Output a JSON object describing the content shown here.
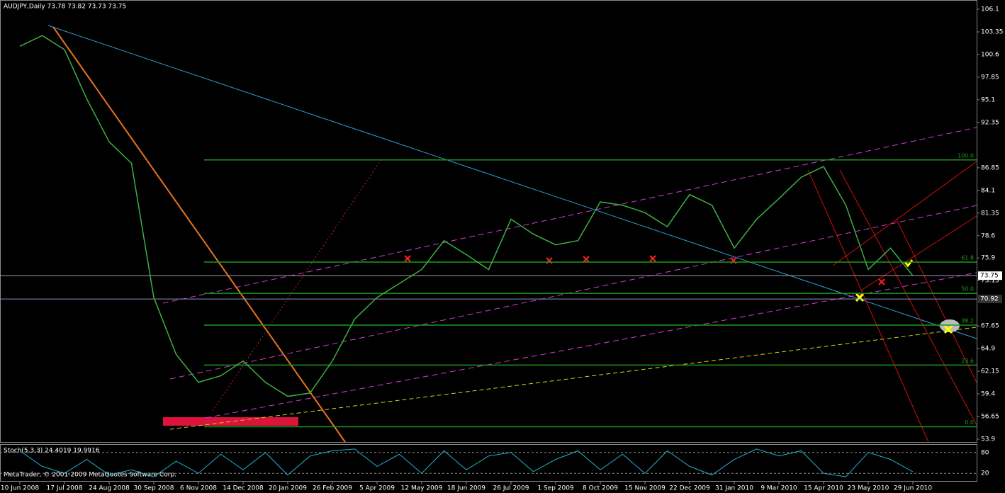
{
  "chart_data": {
    "type": "line",
    "title": "AUDJPY,Daily  73.78 73.82 73.73 73.75",
    "categories": [
      "10 Jun 2008",
      null,
      "17 Jul 2008",
      null,
      "24 Aug 2008",
      null,
      "30 Sep 2008",
      null,
      "6 Nov 2008",
      null,
      "14 Dec 2008",
      null,
      "20 Jan 2009",
      null,
      "26 Feb 2009",
      null,
      "5 Apr 2009",
      null,
      "12 May 2009",
      null,
      "18 Jun 2009",
      null,
      "26 Jul 2009",
      null,
      "1 Sep 2009",
      null,
      "8 Oct 2009",
      null,
      "15 Nov 2009",
      null,
      "22 Dec 2009",
      null,
      "31 Jan 2010",
      null,
      "9 Mar 2010",
      null,
      "15 Apr 2010",
      null,
      "23 May 2010",
      null,
      "29 Jun 2010"
    ],
    "series": [
      {
        "name": "AUDJPY",
        "color": "#3cb043",
        "values": [
          101.6,
          102.9,
          101.2,
          95.2,
          90.0,
          87.4,
          71.1,
          64.2,
          60.8,
          61.6,
          63.4,
          60.8,
          59.1,
          59.5,
          63.4,
          68.5,
          71.1,
          72.8,
          74.5,
          78.0,
          76.3,
          74.5,
          80.6,
          78.8,
          77.5,
          78.0,
          82.7,
          82.3,
          81.4,
          79.7,
          83.6,
          82.3,
          77.1,
          80.6,
          83.1,
          85.7,
          87.0,
          82.3,
          74.5,
          77.1,
          73.75
        ]
      }
    ],
    "ylim": [
      53.9,
      106.1
    ],
    "yticks": [
      106.1,
      103.35,
      100.6,
      97.85,
      95.1,
      92.35,
      86.85,
      84.1,
      81.35,
      78.6,
      75.9,
      73.15,
      67.65,
      64.9,
      62.15,
      59.4,
      56.65,
      53.9
    ],
    "price_labels": [
      73.75,
      70.92
    ],
    "fib_levels": [
      {
        "value": 87.8,
        "label": "100.0"
      },
      {
        "value": 75.4,
        "label": "61.8"
      },
      {
        "value": 71.6,
        "label": "50.0"
      },
      {
        "value": 67.75,
        "label": "38.2"
      },
      {
        "value": 62.9,
        "label": "23.6"
      },
      {
        "value": 55.4,
        "label": "0.0"
      }
    ],
    "oscillator": {
      "title": "Stoch(5,3,3) 24.4019 19.9916",
      "color": "#20b2d0",
      "values": [
        85,
        40,
        20,
        60,
        15,
        30,
        10,
        55,
        20,
        75,
        30,
        80,
        15,
        70,
        85,
        90,
        40,
        75,
        20,
        85,
        30,
        70,
        80,
        25,
        60,
        85,
        30,
        75,
        20,
        85,
        40,
        15,
        60,
        90,
        70,
        85,
        20,
        10,
        80,
        60,
        24.4
      ],
      "ylim": [
        0,
        100
      ],
      "yticks": [
        80,
        20
      ]
    },
    "footer": "MetaTrader, © 2001-2009 MetaQuotes Software Corp."
  }
}
